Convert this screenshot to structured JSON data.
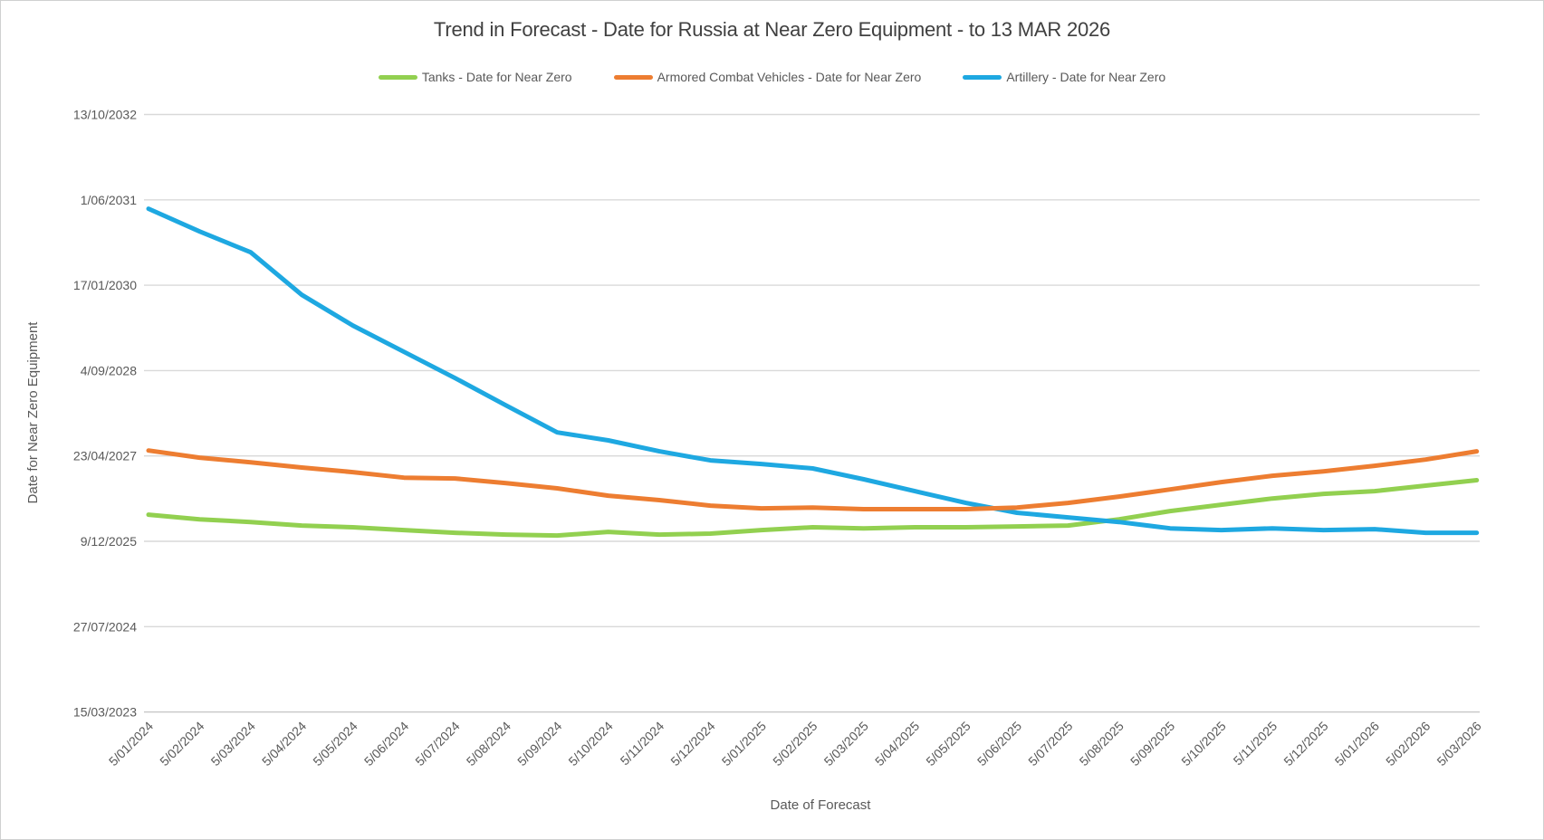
{
  "chart_data": {
    "type": "line",
    "title": "Trend in Forecast - Date for Russia at Near Zero Equipment - to 13 MAR 2026",
    "x_axis_title": "Date of Forecast",
    "y_axis_title": "Date for Near Zero Equipment",
    "date_format": "dd/mm/yyyy",
    "grid": true,
    "legend_position": "top",
    "x_categories": [
      "5/01/2024",
      "5/02/2024",
      "5/03/2024",
      "5/04/2024",
      "5/05/2024",
      "5/06/2024",
      "5/07/2024",
      "5/08/2024",
      "5/09/2024",
      "5/10/2024",
      "5/11/2024",
      "5/12/2024",
      "5/01/2025",
      "5/02/2025",
      "5/03/2025",
      "5/04/2025",
      "5/05/2025",
      "5/06/2025",
      "5/07/2025",
      "5/08/2025",
      "5/09/2025",
      "5/10/2025",
      "5/11/2025",
      "5/12/2025",
      "5/01/2026",
      "5/02/2026",
      "5/03/2026"
    ],
    "y_ticks": [
      "13/10/2032",
      "1/06/2031",
      "17/01/2030",
      "4/09/2028",
      "23/04/2027",
      "9/12/2025",
      "27/07/2024",
      "15/03/2023"
    ],
    "y_range": {
      "min": "15/03/2023",
      "max": "13/10/2032"
    },
    "series": [
      {
        "name": "Tanks - Date for Near Zero",
        "color": "#92D050",
        "values": [
          "14/05/2026",
          "17/04/2026",
          "01/04/2026",
          "11/03/2026",
          "01/03/2026",
          "13/02/2026",
          "28/01/2026",
          "17/01/2026",
          "12/01/2026",
          "02/02/2026",
          "17/01/2026",
          "23/01/2026",
          "13/02/2026",
          "01/03/2026",
          "23/02/2026",
          "01/03/2026",
          "01/03/2026",
          "06/03/2026",
          "11/03/2026",
          "17/04/2026",
          "04/06/2026",
          "11/07/2026",
          "17/08/2026",
          "13/09/2026",
          "29/09/2026",
          "31/10/2026",
          "02/12/2026"
        ]
      },
      {
        "name": "Armored Combat Vehicles - Date for Near Zero",
        "color": "#ED7D31",
        "values": [
          "25/05/2027",
          "13/04/2027",
          "17/03/2027",
          "14/02/2027",
          "18/01/2027",
          "17/12/2026",
          "12/12/2026",
          "15/11/2026",
          "15/10/2026",
          "02/09/2026",
          "07/08/2026",
          "06/07/2026",
          "20/06/2026",
          "25/06/2026",
          "15/06/2026",
          "15/06/2026",
          "15/06/2026",
          "25/06/2026",
          "22/07/2026",
          "28/08/2026",
          "09/10/2026",
          "21/11/2026",
          "28/12/2026",
          "23/01/2027",
          "24/02/2027",
          "02/04/2027",
          "20/05/2027"
        ]
      },
      {
        "name": "Artillery - Date for Near Zero",
        "color": "#1EA8E1",
        "values": [
          "10/04/2031",
          "28/11/2030",
          "29/07/2030",
          "22/11/2029",
          "26/05/2029",
          "23/12/2028",
          "22/07/2028",
          "13/02/2028",
          "08/09/2027",
          "23/07/2027",
          "20/05/2027",
          "28/03/2027",
          "07/03/2027",
          "09/02/2027",
          "07/12/2026",
          "29/09/2026",
          "22/07/2026",
          "25/05/2026",
          "28/04/2026",
          "01/04/2026",
          "23/02/2026",
          "13/02/2026",
          "23/02/2026",
          "13/02/2026",
          "18/02/2026",
          "28/01/2026",
          "28/01/2026"
        ]
      }
    ]
  },
  "style": {
    "grid_color": "#D9D9D9",
    "baseline_color": "#C6C6C6",
    "text_color": "#595959",
    "title_color": "#404040",
    "background": "#FFFFFF"
  }
}
